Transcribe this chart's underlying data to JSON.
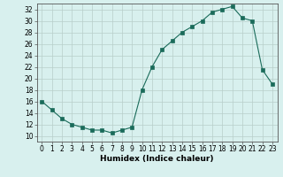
{
  "x": [
    0,
    1,
    2,
    3,
    4,
    5,
    6,
    7,
    8,
    9,
    10,
    11,
    12,
    13,
    14,
    15,
    16,
    17,
    18,
    19,
    20,
    21,
    22,
    23
  ],
  "y": [
    16,
    14.5,
    13,
    12,
    11.5,
    11,
    11,
    10.5,
    11,
    11.5,
    18,
    22,
    25,
    26.5,
    28,
    29,
    30,
    31.5,
    32,
    32.5,
    30.5,
    30,
    21.5,
    19
  ],
  "line_color": "#1a6b5a",
  "marker": "s",
  "marker_size": 2.5,
  "bg_color": "#d8f0ee",
  "grid_color": "#b8ceca",
  "xlabel": "Humidex (Indice chaleur)",
  "xlim": [
    -0.5,
    23.5
  ],
  "ylim": [
    9,
    33
  ],
  "yticks": [
    10,
    12,
    14,
    16,
    18,
    20,
    22,
    24,
    26,
    28,
    30,
    32
  ],
  "xticks": [
    0,
    1,
    2,
    3,
    4,
    5,
    6,
    7,
    8,
    9,
    10,
    11,
    12,
    13,
    14,
    15,
    16,
    17,
    18,
    19,
    20,
    21,
    22,
    23
  ],
  "xlabel_fontsize": 6.5,
  "tick_fontsize": 5.5
}
